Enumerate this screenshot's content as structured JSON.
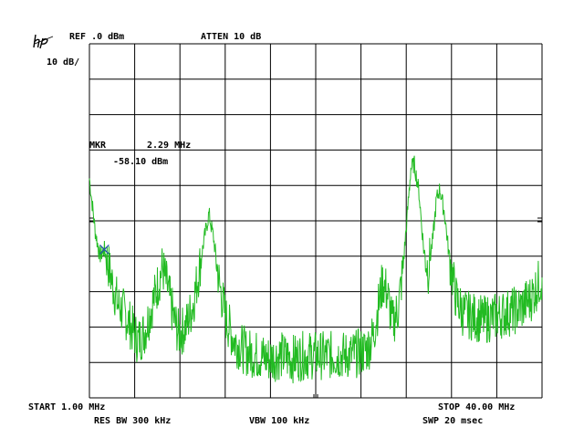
{
  "instrument": {
    "logo_text": "hp"
  },
  "header": {
    "ref_level": "REF .0 dBm",
    "attenuation": "ATTEN 10 dB",
    "scale": "10 dB/"
  },
  "marker": {
    "label": "MKR",
    "frequency": "2.29 MHz",
    "amplitude": "-58.10 dBm"
  },
  "footer": {
    "start": "START 1.00 MHz",
    "stop": "STOP 40.00 MHz",
    "rbw": "RES BW 300 kHz",
    "vbw": "VBW 100 kHz",
    "sweep": "SWP 20 msec"
  },
  "colors": {
    "trace": "#22bb22",
    "marker": "#2255aa",
    "graticule": "#000000"
  },
  "chart_data": {
    "type": "line",
    "x_unit": "MHz",
    "y_unit": "dBm",
    "xlim": [
      1.0,
      40.0
    ],
    "ylim": [
      -100,
      0
    ],
    "grid": true,
    "grid_divisions": {
      "x": 10,
      "y": 10
    },
    "marker_point": {
      "x": 2.29,
      "y": -58.1
    },
    "series": [
      {
        "points": [
          [
            1.0,
            -38
          ],
          [
            1.2,
            -44
          ],
          [
            1.5,
            -53
          ],
          [
            1.9,
            -60
          ],
          [
            2.29,
            -58.1
          ],
          [
            2.6,
            -62
          ],
          [
            3.0,
            -68
          ],
          [
            3.5,
            -74
          ],
          [
            4.0,
            -76
          ],
          [
            4.6,
            -80
          ],
          [
            5.2,
            -84
          ],
          [
            5.8,
            -81
          ],
          [
            6.3,
            -75
          ],
          [
            6.9,
            -68
          ],
          [
            7.3,
            -63
          ],
          [
            7.8,
            -70
          ],
          [
            8.3,
            -78
          ],
          [
            8.7,
            -82
          ],
          [
            9.3,
            -80
          ],
          [
            9.9,
            -74
          ],
          [
            10.4,
            -65
          ],
          [
            10.9,
            -55
          ],
          [
            11.3,
            -48
          ],
          [
            11.7,
            -55
          ],
          [
            12.2,
            -68
          ],
          [
            12.8,
            -78
          ],
          [
            13.5,
            -84
          ],
          [
            14.5,
            -87
          ],
          [
            15.5,
            -88
          ],
          [
            16.5,
            -89
          ],
          [
            17.5,
            -88
          ],
          [
            18.5,
            -89
          ],
          [
            19.5,
            -88
          ],
          [
            20.5,
            -88
          ],
          [
            21.5,
            -88
          ],
          [
            22.5,
            -88
          ],
          [
            23.5,
            -88
          ],
          [
            24.5,
            -87
          ],
          [
            25.0,
            -86
          ],
          [
            25.5,
            -82
          ],
          [
            25.9,
            -74
          ],
          [
            26.3,
            -67
          ],
          [
            26.7,
            -71
          ],
          [
            27.1,
            -79
          ],
          [
            27.6,
            -75
          ],
          [
            28.0,
            -64
          ],
          [
            28.4,
            -48
          ],
          [
            28.7,
            -35
          ],
          [
            29.0,
            -34
          ],
          [
            29.4,
            -42
          ],
          [
            29.8,
            -58
          ],
          [
            30.2,
            -64
          ],
          [
            30.6,
            -55
          ],
          [
            30.9,
            -44
          ],
          [
            31.2,
            -41
          ],
          [
            31.6,
            -48
          ],
          [
            32.0,
            -60
          ],
          [
            32.6,
            -72
          ],
          [
            33.2,
            -76
          ],
          [
            34.0,
            -77
          ],
          [
            35.0,
            -78
          ],
          [
            36.0,
            -77
          ],
          [
            37.0,
            -76
          ],
          [
            38.0,
            -75
          ],
          [
            39.0,
            -72
          ],
          [
            40.0,
            -66
          ]
        ]
      }
    ]
  }
}
